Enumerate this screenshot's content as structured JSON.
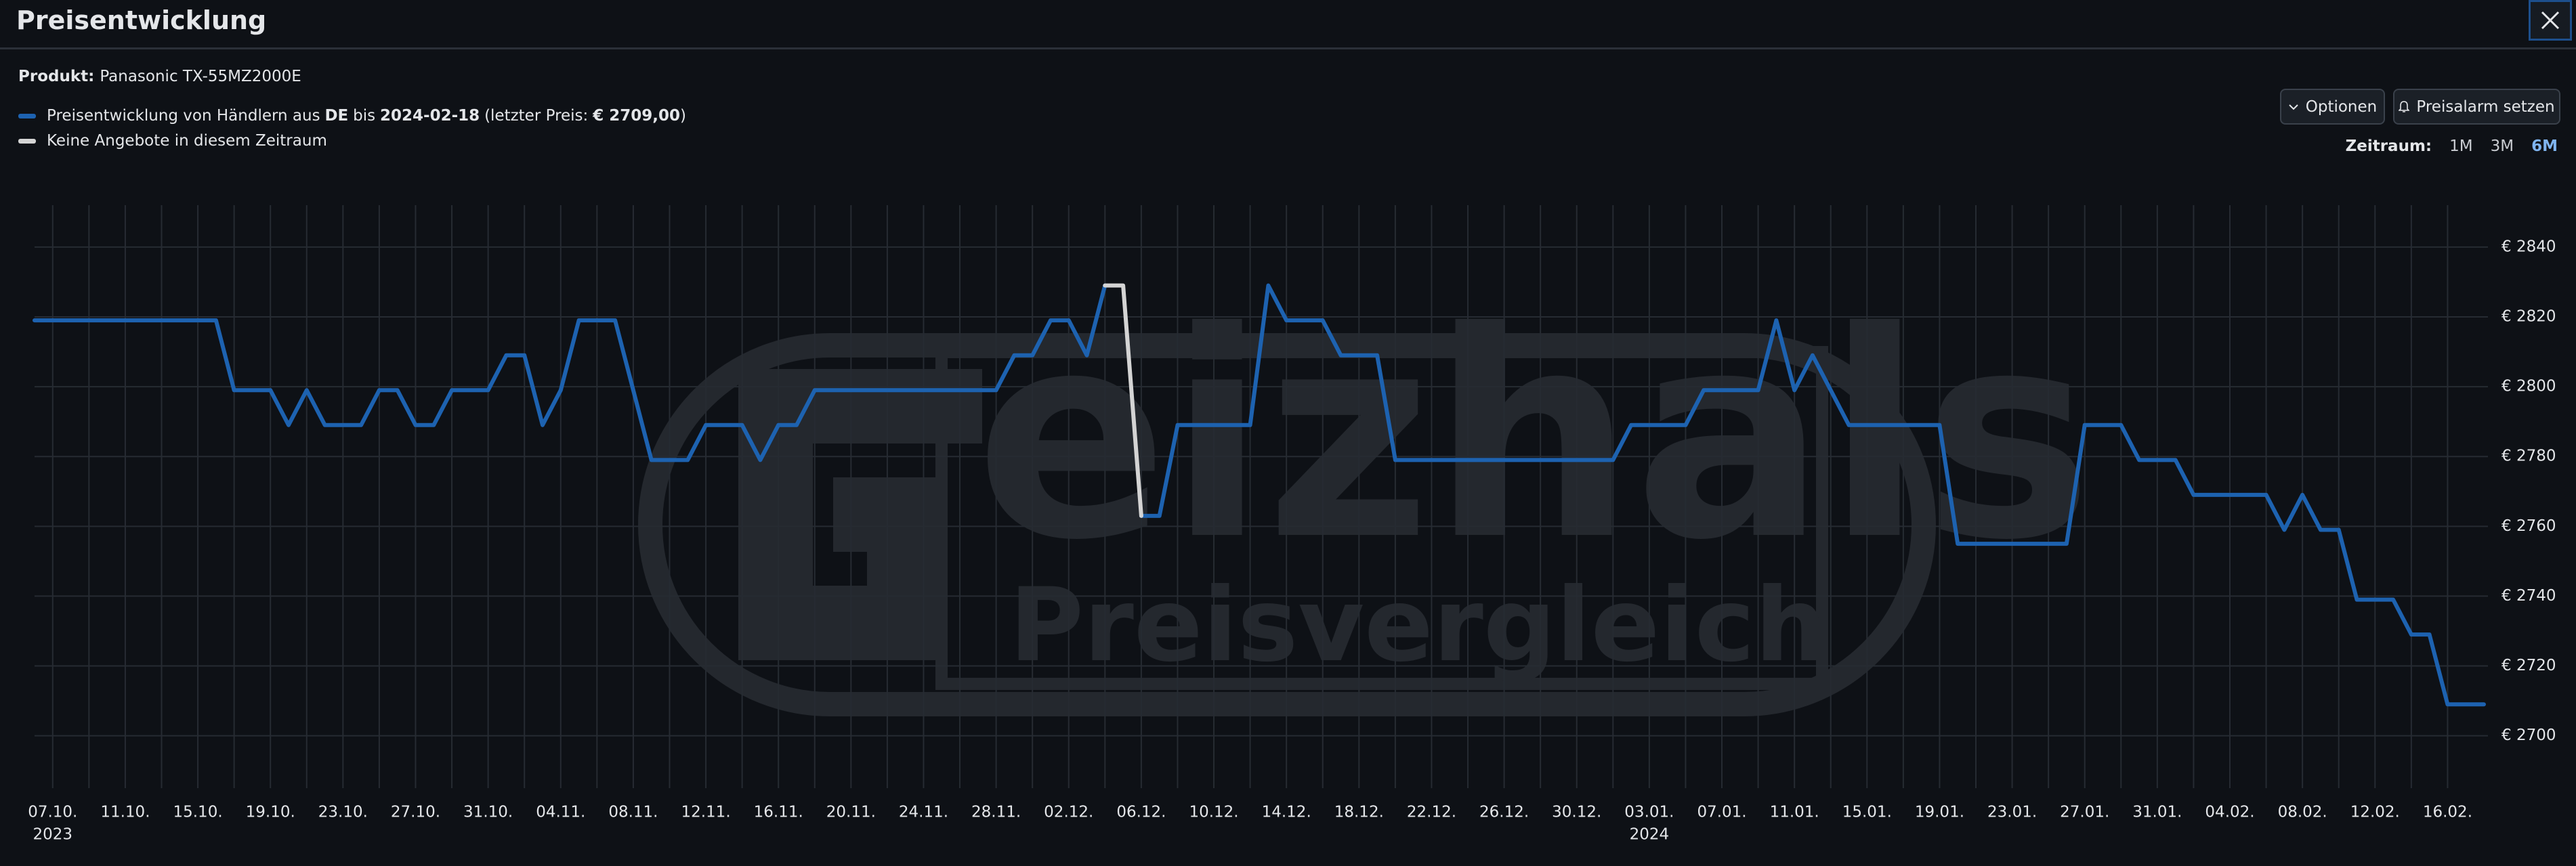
{
  "header": {
    "title": "Preisentwicklung"
  },
  "product": {
    "label": "Produkt:",
    "name": "Panasonic TX-55MZ2000E"
  },
  "buttons": {
    "options": "Optionen",
    "alarm": "Preisalarm setzen"
  },
  "range": {
    "label": "Zeitraum:",
    "options": [
      "1M",
      "3M",
      "6M"
    ],
    "active": "6M"
  },
  "watermark": {
    "brand": "eizhals",
    "subtitle": "Preisvergleich"
  },
  "chart_data": {
    "type": "line",
    "series": [
      {
        "name": [
          "Preisentwicklung von Händlern aus",
          "DE",
          "bis",
          "2024-02-18",
          "(letzter Preis:",
          "€ 2709,00",
          ")"
        ],
        "color": "#1d62b0",
        "x": [
          "2023-10-06",
          "2023-10-16",
          "2023-10-17",
          "2023-10-19",
          "2023-10-20",
          "2023-10-21",
          "2023-10-22",
          "2023-10-24",
          "2023-10-25",
          "2023-10-26",
          "2023-10-27",
          "2023-10-28",
          "2023-10-29",
          "2023-10-31",
          "2023-11-01",
          "2023-11-02",
          "2023-11-03",
          "2023-11-04",
          "2023-11-05",
          "2023-11-07",
          "2023-11-09",
          "2023-11-11",
          "2023-11-12",
          "2023-11-14",
          "2023-11-15",
          "2023-11-16",
          "2023-11-17",
          "2023-11-18",
          "2023-11-28",
          "2023-11-29",
          "2023-11-30",
          "2023-12-01",
          "2023-12-02",
          "2023-12-03",
          "2023-12-04",
          "2023-12-05",
          "2023-12-06",
          "2023-12-07",
          "2023-12-08",
          "2023-12-12",
          "2023-12-13",
          "2023-12-14",
          "2023-12-16",
          "2023-12-17",
          "2023-12-19",
          "2023-12-20",
          "2024-01-01",
          "2024-01-02",
          "2024-01-05",
          "2024-01-06",
          "2024-01-09",
          "2024-01-10",
          "2024-01-11",
          "2024-01-12",
          "2024-01-14",
          "2024-01-19",
          "2024-01-20",
          "2024-01-26",
          "2024-01-27",
          "2024-01-29",
          "2024-01-30",
          "2024-02-01",
          "2024-02-02",
          "2024-02-06",
          "2024-02-07",
          "2024-02-08",
          "2024-02-09",
          "2024-02-10",
          "2024-02-11",
          "2024-02-13",
          "2024-02-14",
          "2024-02-15",
          "2024-02-16",
          "2024-02-18"
        ],
        "values": [
          2819,
          2819,
          2799,
          2799,
          2789,
          2799,
          2789,
          2789,
          2799,
          2799,
          2789,
          2789,
          2799,
          2799,
          2809,
          2809,
          2789,
          2799,
          2819,
          2819,
          2779,
          2779,
          2789,
          2789,
          2779,
          2789,
          2789,
          2799,
          2799,
          2809,
          2809,
          2819,
          2819,
          2809,
          2829,
          null,
          2763,
          2763,
          2789,
          2789,
          2829,
          2819,
          2819,
          2809,
          2809,
          2779,
          2779,
          2789,
          2789,
          2799,
          2799,
          2819,
          2799,
          2809,
          2789,
          2789,
          2755,
          2755,
          2789,
          2789,
          2779,
          2779,
          2769,
          2769,
          2759,
          2769,
          2759,
          2759,
          2739,
          2739,
          2729,
          2729,
          2709,
          2709
        ]
      },
      {
        "name": "Keine Angebote in diesem Zeitraum",
        "color": "#d4d4d4",
        "x": [
          "2023-12-04",
          "2023-12-05",
          "2023-12-06"
        ],
        "values": [
          2829,
          2829,
          2763
        ]
      }
    ],
    "xlim": [
      "2023-10-06",
      "2024-02-18"
    ],
    "xticks": [
      {
        "value": "2023-10-07",
        "label": "07.10.",
        "year": "2023"
      },
      {
        "value": "2023-10-11",
        "label": "11.10."
      },
      {
        "value": "2023-10-15",
        "label": "15.10."
      },
      {
        "value": "2023-10-19",
        "label": "19.10."
      },
      {
        "value": "2023-10-23",
        "label": "23.10."
      },
      {
        "value": "2023-10-27",
        "label": "27.10."
      },
      {
        "value": "2023-10-31",
        "label": "31.10."
      },
      {
        "value": "2023-11-04",
        "label": "04.11."
      },
      {
        "value": "2023-11-08",
        "label": "08.11."
      },
      {
        "value": "2023-11-12",
        "label": "12.11."
      },
      {
        "value": "2023-11-16",
        "label": "16.11."
      },
      {
        "value": "2023-11-20",
        "label": "20.11."
      },
      {
        "value": "2023-11-24",
        "label": "24.11."
      },
      {
        "value": "2023-11-28",
        "label": "28.11."
      },
      {
        "value": "2023-12-02",
        "label": "02.12."
      },
      {
        "value": "2023-12-06",
        "label": "06.12."
      },
      {
        "value": "2023-12-10",
        "label": "10.12."
      },
      {
        "value": "2023-12-14",
        "label": "14.12."
      },
      {
        "value": "2023-12-18",
        "label": "18.12."
      },
      {
        "value": "2023-12-22",
        "label": "22.12."
      },
      {
        "value": "2023-12-26",
        "label": "26.12."
      },
      {
        "value": "2023-12-30",
        "label": "30.12."
      },
      {
        "value": "2024-01-03",
        "label": "03.01.",
        "year": "2024"
      },
      {
        "value": "2024-01-07",
        "label": "07.01."
      },
      {
        "value": "2024-01-11",
        "label": "11.01."
      },
      {
        "value": "2024-01-15",
        "label": "15.01."
      },
      {
        "value": "2024-01-19",
        "label": "19.01."
      },
      {
        "value": "2024-01-23",
        "label": "23.01."
      },
      {
        "value": "2024-01-27",
        "label": "27.01."
      },
      {
        "value": "2024-01-31",
        "label": "31.01."
      },
      {
        "value": "2024-02-04",
        "label": "04.02."
      },
      {
        "value": "2024-02-08",
        "label": "08.02."
      },
      {
        "value": "2024-02-12",
        "label": "12.02."
      },
      {
        "value": "2024-02-16",
        "label": "16.02."
      }
    ],
    "ylim": [
      2685,
      2852
    ],
    "yticks": [
      {
        "value": 2700,
        "label": "€ 2700"
      },
      {
        "value": 2720,
        "label": "€ 2720"
      },
      {
        "value": 2740,
        "label": "€ 2740"
      },
      {
        "value": 2760,
        "label": "€ 2760"
      },
      {
        "value": 2780,
        "label": "€ 2780"
      },
      {
        "value": 2800,
        "label": "€ 2800"
      },
      {
        "value": 2820,
        "label": "€ 2820"
      },
      {
        "value": 2840,
        "label": "€ 2840"
      }
    ],
    "grid": true
  }
}
